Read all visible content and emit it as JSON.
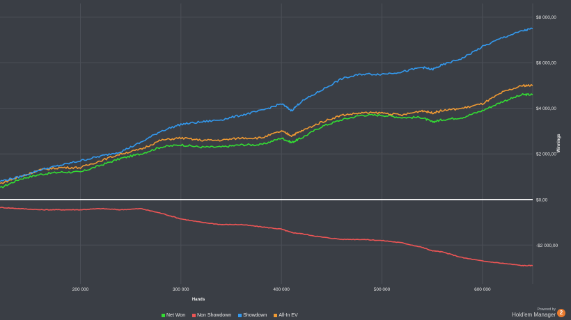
{
  "chart_data": {
    "type": "line",
    "xlabel": "Hands",
    "ylabel": "Winnings",
    "xlim": [
      120000,
      650000
    ],
    "ylim": [
      -3700,
      8600
    ],
    "x_ticks": [
      200000,
      300000,
      400000,
      500000,
      600000
    ],
    "x_tick_labels": [
      "200 000",
      "300 000",
      "400 000",
      "500 000",
      "600 000"
    ],
    "y_ticks": [
      -2000,
      0,
      2000,
      4000,
      6000,
      8000
    ],
    "y_tick_labels": [
      "-$2 000,00",
      "$0,00",
      "$2 000,00",
      "$4 000,00",
      "$6 000,00",
      "$8 000,00"
    ],
    "grid": true,
    "legend_position": "bottom",
    "x": [
      120000,
      140000,
      160000,
      180000,
      200000,
      220000,
      240000,
      260000,
      280000,
      300000,
      320000,
      340000,
      360000,
      380000,
      400000,
      410000,
      420000,
      440000,
      460000,
      480000,
      500000,
      520000,
      540000,
      550000,
      560000,
      580000,
      600000,
      620000,
      640000,
      650000
    ],
    "series": [
      {
        "name": "Net Won",
        "color": "#33dd33",
        "values": [
          500,
          900,
          1100,
          1200,
          1200,
          1500,
          1800,
          2000,
          2300,
          2400,
          2300,
          2300,
          2400,
          2400,
          2700,
          2500,
          2700,
          3200,
          3500,
          3700,
          3700,
          3600,
          3600,
          3400,
          3500,
          3600,
          3900,
          4300,
          4600,
          4600
        ]
      },
      {
        "name": "Non Showdown",
        "color": "#ee5555",
        "values": [
          -350,
          -400,
          -450,
          -450,
          -450,
          -400,
          -450,
          -400,
          -600,
          -850,
          -1000,
          -1100,
          -1100,
          -1200,
          -1300,
          -1450,
          -1500,
          -1650,
          -1750,
          -1750,
          -1800,
          -1900,
          -2100,
          -2250,
          -2300,
          -2550,
          -2700,
          -2800,
          -2900,
          -2900
        ]
      },
      {
        "name": "Showdown",
        "color": "#3399ee",
        "values": [
          800,
          1000,
          1300,
          1500,
          1700,
          1900,
          2100,
          2500,
          3000,
          3300,
          3400,
          3500,
          3700,
          3900,
          4200,
          3900,
          4300,
          4800,
          5300,
          5500,
          5500,
          5600,
          5800,
          5700,
          5900,
          6200,
          6700,
          7100,
          7400,
          7500
        ]
      },
      {
        "name": "All-In EV",
        "color": "#f09a33",
        "values": [
          700,
          1000,
          1300,
          1400,
          1400,
          1700,
          2000,
          2200,
          2600,
          2700,
          2600,
          2600,
          2700,
          2700,
          3000,
          2800,
          3000,
          3400,
          3700,
          3800,
          3800,
          3700,
          3900,
          3800,
          3900,
          4000,
          4200,
          4700,
          5000,
          5000
        ]
      }
    ]
  },
  "branding": {
    "powered_by": "Powered by",
    "name": "Hold'em Manager",
    "badge": "2"
  }
}
